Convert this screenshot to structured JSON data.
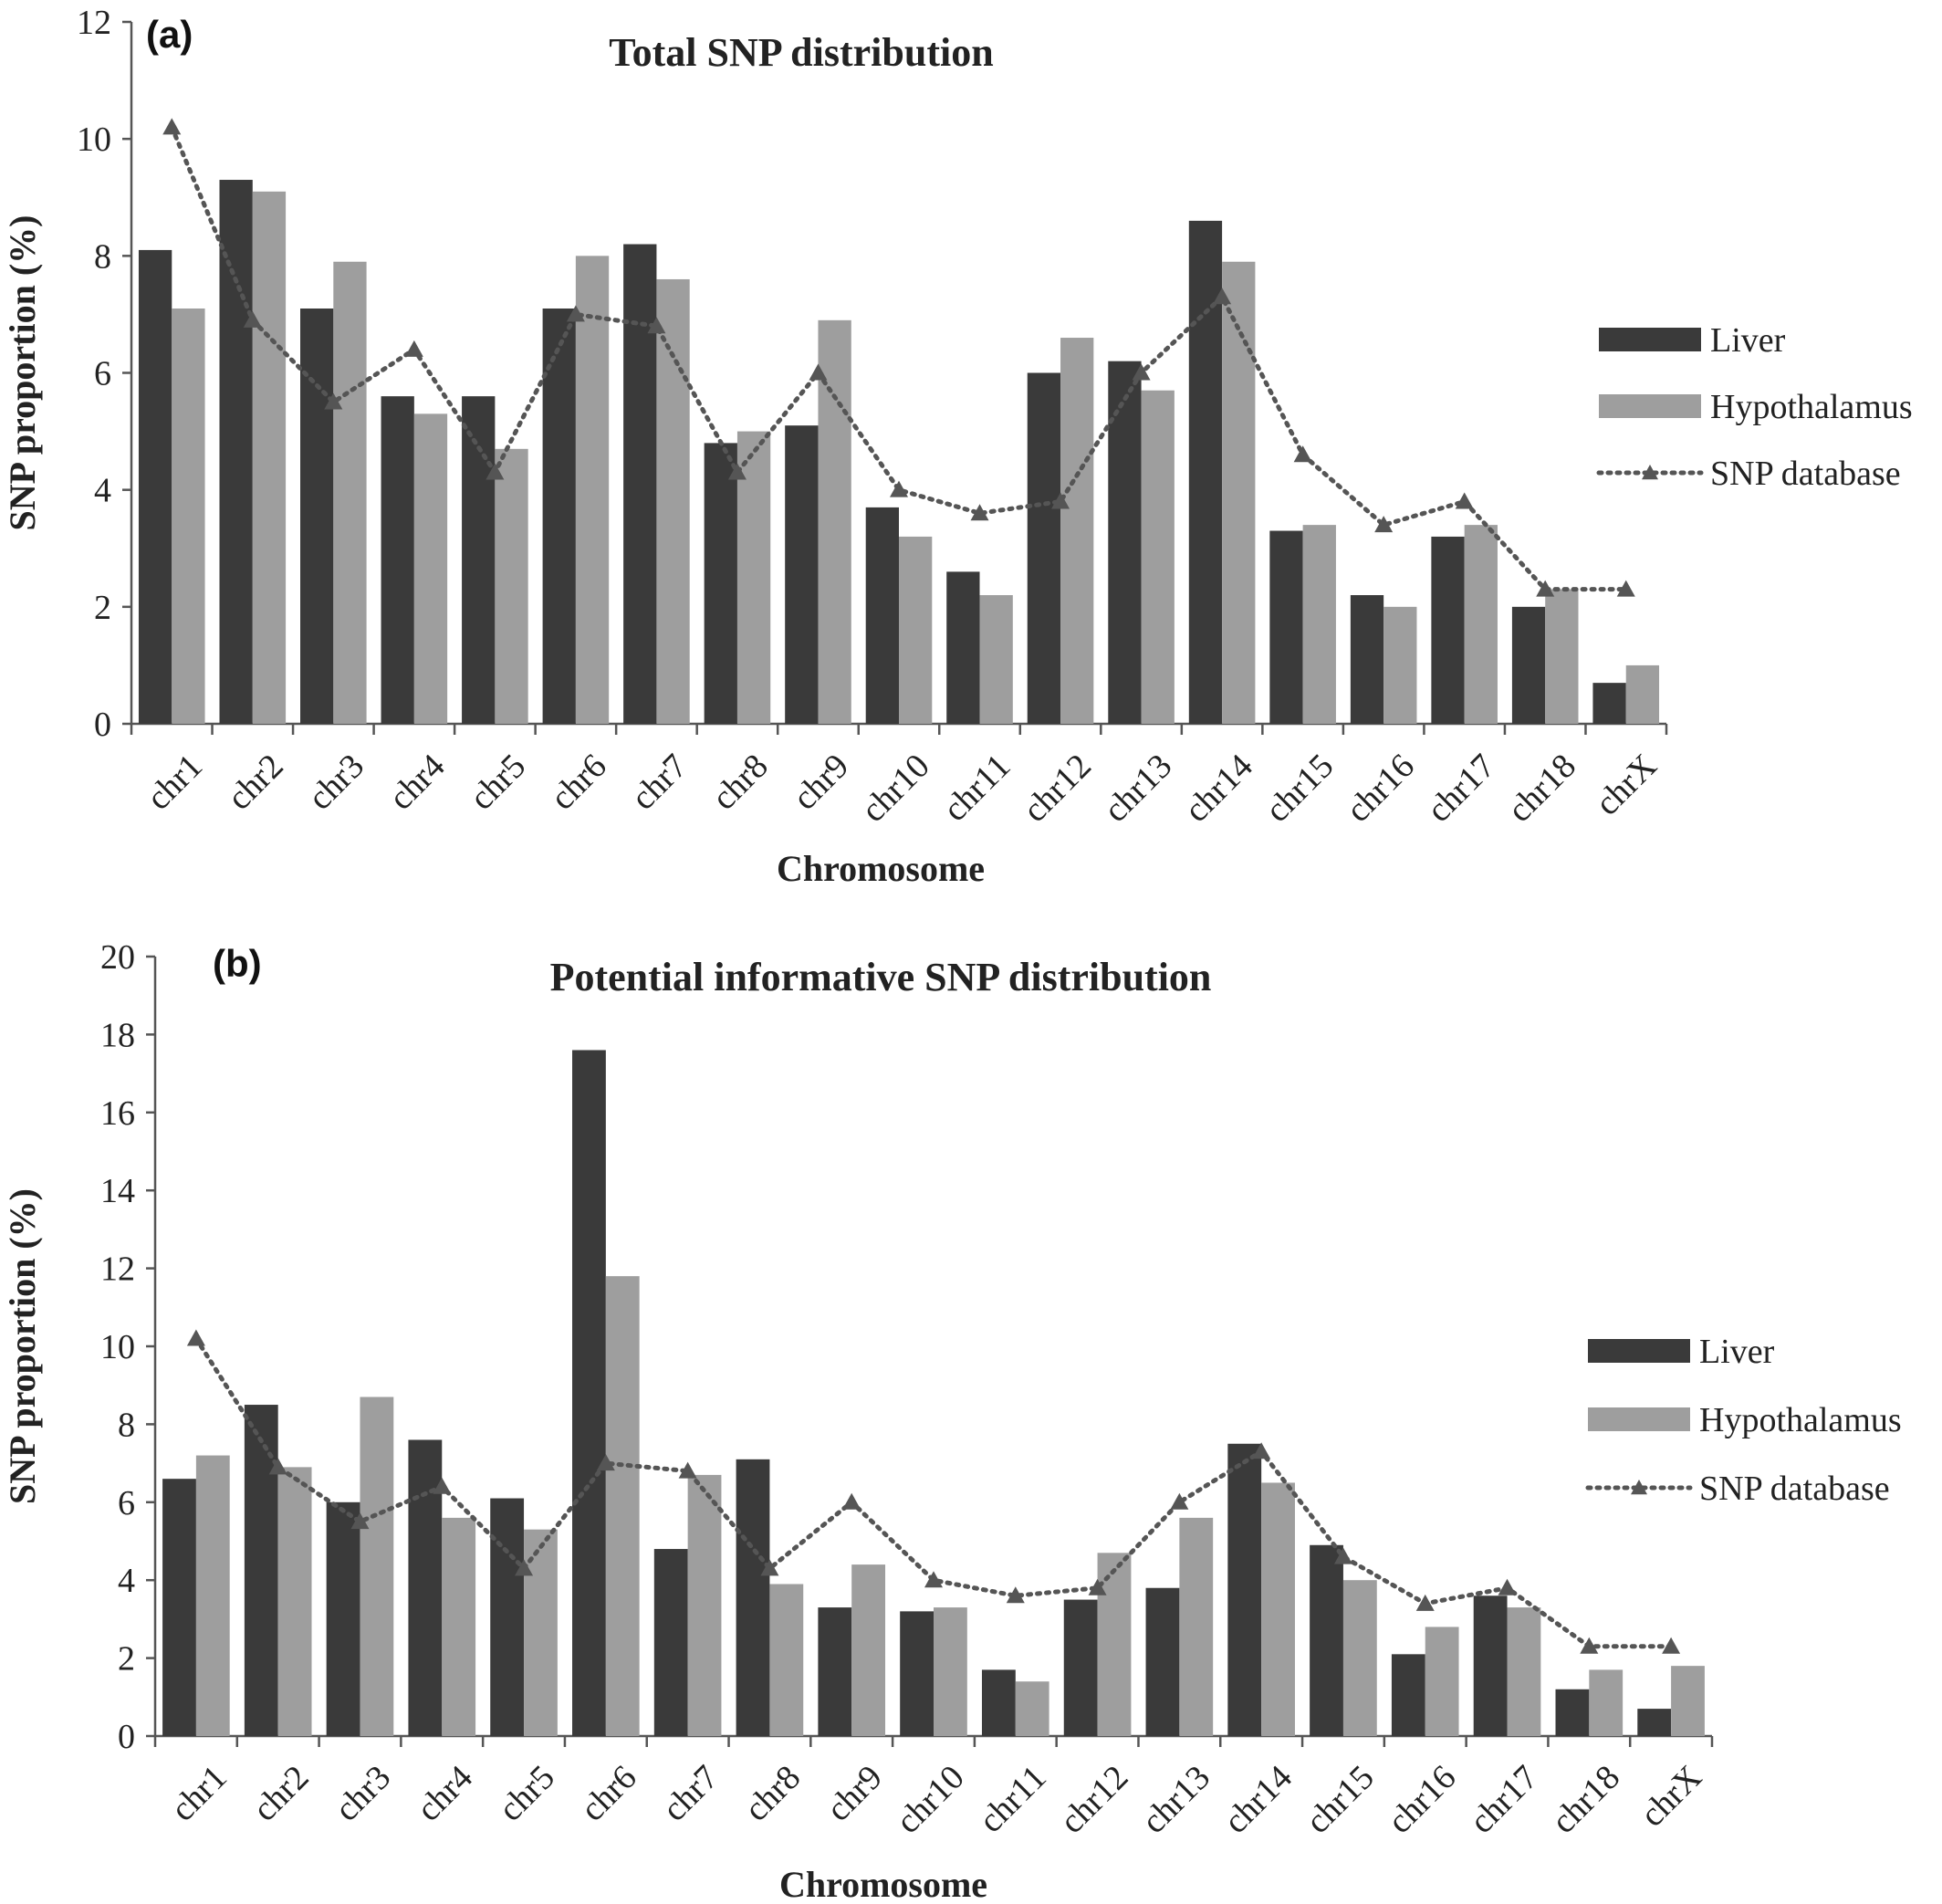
{
  "colors": {
    "liver": "#3a3a3a",
    "hypothalamus": "#9e9e9e",
    "snp_database": "#555555",
    "axis": "#555555"
  },
  "chart_data": [
    {
      "panel_label": "(a)",
      "type": "bar",
      "title": "Total SNP distribution",
      "xlabel": "Chromosome",
      "ylabel": "SNP proportion (%)",
      "ylim": [
        0,
        12
      ],
      "yticks": [
        0,
        2,
        4,
        6,
        8,
        10,
        12
      ],
      "grid": false,
      "legend_position": "right",
      "categories": [
        "chr1",
        "chr2",
        "chr3",
        "chr4",
        "chr5",
        "chr6",
        "chr7",
        "chr8",
        "chr9",
        "chr10",
        "chr11",
        "chr12",
        "chr13",
        "chr14",
        "chr15",
        "chr16",
        "chr17",
        "chr18",
        "chrX"
      ],
      "series": [
        {
          "name": "Liver",
          "kind": "bar",
          "values": [
            8.1,
            9.3,
            7.1,
            5.6,
            5.6,
            7.1,
            8.2,
            4.8,
            5.1,
            3.7,
            2.6,
            6.0,
            6.2,
            8.6,
            3.3,
            2.2,
            3.2,
            2.0,
            0.7
          ]
        },
        {
          "name": "Hypothalamus",
          "kind": "bar",
          "values": [
            7.1,
            9.1,
            7.9,
            5.3,
            4.7,
            8.0,
            7.6,
            5.0,
            6.9,
            3.2,
            2.2,
            6.6,
            5.7,
            7.9,
            3.4,
            2.0,
            3.4,
            2.3,
            1.0
          ]
        },
        {
          "name": "SNP database",
          "kind": "line",
          "values": [
            10.2,
            6.9,
            5.5,
            6.4,
            4.3,
            7.0,
            6.8,
            4.3,
            6.0,
            4.0,
            3.6,
            3.8,
            6.0,
            7.3,
            4.6,
            3.4,
            3.8,
            2.3,
            2.3
          ]
        }
      ]
    },
    {
      "panel_label": "(b)",
      "type": "bar",
      "title": "Potential informative SNP distribution",
      "xlabel": "Chromosome",
      "ylabel": "SNP proportion (%)",
      "ylim": [
        0,
        20
      ],
      "yticks": [
        0,
        2,
        4,
        6,
        8,
        10,
        12,
        14,
        16,
        18,
        20
      ],
      "grid": false,
      "legend_position": "right",
      "categories": [
        "chr1",
        "chr2",
        "chr3",
        "chr4",
        "chr5",
        "chr6",
        "chr7",
        "chr8",
        "chr9",
        "chr10",
        "chr11",
        "chr12",
        "chr13",
        "chr14",
        "chr15",
        "chr16",
        "chr17",
        "chr18",
        "chrX"
      ],
      "series": [
        {
          "name": "Liver",
          "kind": "bar",
          "values": [
            6.6,
            8.5,
            6.0,
            7.6,
            6.1,
            17.6,
            4.8,
            7.1,
            3.3,
            3.2,
            1.7,
            3.5,
            3.8,
            7.5,
            4.9,
            2.1,
            3.6,
            1.2,
            0.7
          ]
        },
        {
          "name": "Hypothalamus",
          "kind": "bar",
          "values": [
            7.2,
            6.9,
            8.7,
            5.6,
            5.3,
            11.8,
            6.7,
            3.9,
            4.4,
            3.3,
            1.4,
            4.7,
            5.6,
            6.5,
            4.0,
            2.8,
            3.3,
            1.7,
            1.8
          ]
        },
        {
          "name": "SNP database",
          "kind": "line",
          "values": [
            10.2,
            6.9,
            5.5,
            6.4,
            4.3,
            7.0,
            6.8,
            4.3,
            6.0,
            4.0,
            3.6,
            3.8,
            6.0,
            7.3,
            4.6,
            3.4,
            3.8,
            2.3,
            2.3
          ]
        }
      ]
    }
  ]
}
